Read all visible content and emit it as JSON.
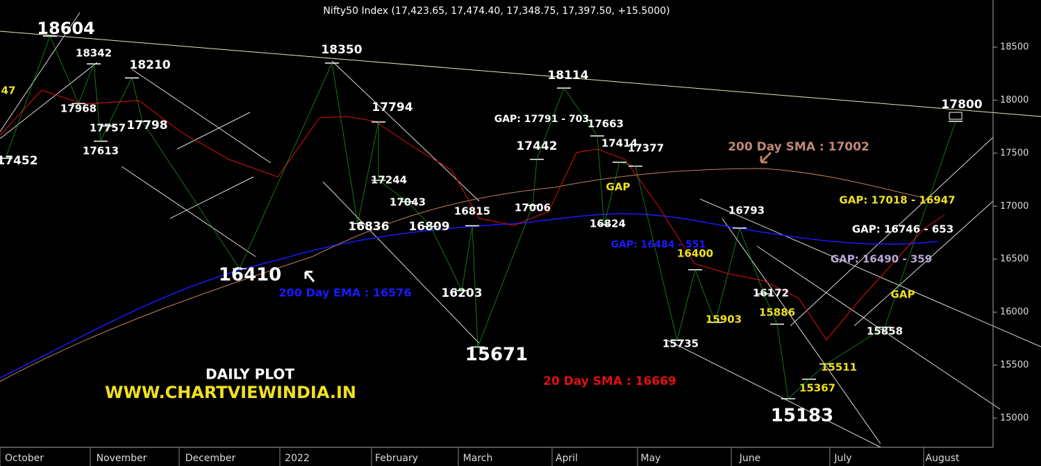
{
  "chart_data": {
    "type": "candlestick",
    "title": "Nifty50 Index (17,423.65, 17,474.40, 17,348.75, 17,397.50, +15.5000)",
    "ylim": [
      14725,
      18945
    ],
    "yticks": [
      15000,
      15500,
      16000,
      16500,
      17000,
      17500,
      18000,
      18500
    ],
    "categories": [
      "October",
      "November",
      "December",
      "2022",
      "February",
      "March",
      "April",
      "May",
      "June",
      "July",
      "August"
    ],
    "swings": {
      "values": [
        17452,
        18604,
        17968,
        18342,
        17613,
        17757,
        18210,
        17798,
        16410,
        18350,
        16836,
        17794,
        17244,
        17043,
        16809,
        16203,
        16815,
        15671,
        17006,
        17442,
        18114,
        17663,
        16824,
        17414,
        17377,
        15735,
        16400,
        15903,
        16793,
        16172,
        15886,
        15183,
        15367,
        15511,
        15858,
        17800
      ]
    },
    "annotations": [
      "47",
      "GAP: 17791 - 703",
      "200 Day SMA : 17002",
      "GAP",
      "GAP: 16484 - 551",
      "200 Day EMA : 16576",
      "20 Day SMA : 16669",
      "DAILY PLOT",
      "WWW.CHARTVIEWINDIA.IN",
      "GAP: 17018 - 16947",
      "GAP: 16746 - 653",
      "GAP: 16490 - 359",
      "GAP"
    ]
  }
}
